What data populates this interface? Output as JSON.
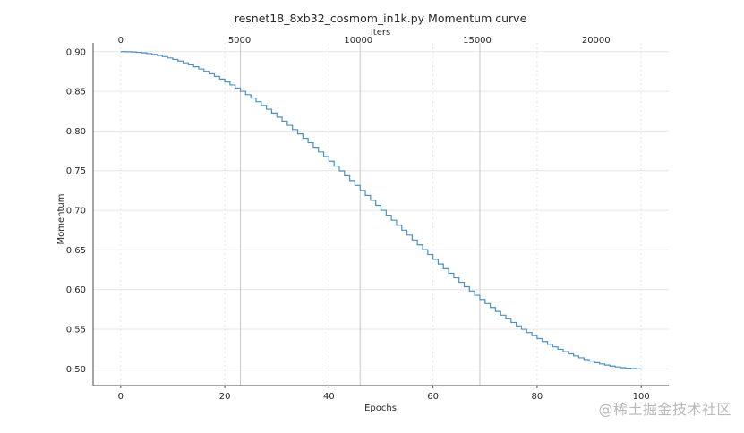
{
  "chart_data": {
    "type": "line",
    "title": "resnet18_8xb32_cosmom_in1k.py Momentum curve",
    "xlabel": "Epochs",
    "ylabel": "Momentum",
    "top_xlabel": "Iters",
    "xlim": [
      -5.3,
      105.3
    ],
    "ylim": [
      0.479,
      0.911
    ],
    "x_ticks": [
      0,
      20,
      40,
      60,
      80,
      100
    ],
    "y_ticks": [
      0.9,
      0.85,
      0.8,
      0.75,
      0.7,
      0.65,
      0.6,
      0.55,
      0.5
    ],
    "y_tick_labels": [
      "0.90",
      "0.85",
      "0.80",
      "0.75",
      "0.70",
      "0.65",
      "0.60",
      "0.55",
      "0.50"
    ],
    "top_ticks": [
      0,
      5000,
      10000,
      15000,
      20000
    ],
    "iters_per_epoch": 219,
    "max_epoch": 100,
    "momentum_start": 0.9,
    "momentum_end": 0.5,
    "step_curve": "cosine: m(e) = 0.5 + 0.2*(1+cos(pi*e/100)), stepped each epoch",
    "epoch_separators": [
      23,
      46,
      69
    ],
    "grid": true,
    "series": [
      {
        "name": "momentum",
        "color": "#4a90c2"
      }
    ]
  },
  "watermark": "@稀土掘金技术社区",
  "colors": {
    "line": "#4a90c2",
    "grid": "#e6e6e6",
    "separator": "#c8c8c8",
    "axis": "#4d4d4d"
  }
}
